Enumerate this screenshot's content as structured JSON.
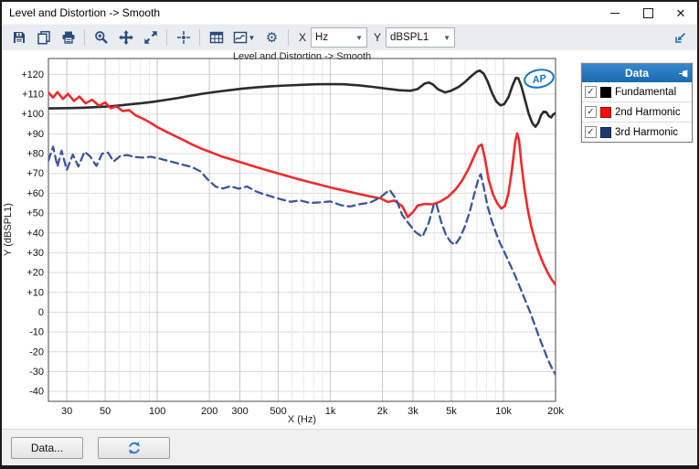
{
  "window": {
    "title": "Level and Distortion -> Smooth",
    "controls": [
      "minimize-icon",
      "maximize-icon",
      "close-icon"
    ]
  },
  "toolbar": {
    "icon_groups": [
      [
        "save",
        "copy",
        "print"
      ],
      [
        "zoom",
        "pan",
        "zoom-fit"
      ],
      [
        "cursor"
      ],
      [
        "table",
        "graph-type",
        "settings"
      ]
    ],
    "x_label": "X",
    "x_value": "Hz",
    "y_label": "Y",
    "y_value": "dBSPL1",
    "dock_icon": "dock-left-icon",
    "chevron_icon": "chevron-down-icon"
  },
  "chart": {
    "title": "Level and Distortion -> Smooth",
    "x_axis_title": "X (Hz)",
    "y_axis_title": "Y (dBSPL1)",
    "logo_text": "AP",
    "logo_color": "#1b75bc"
  },
  "legend": {
    "title": "Data",
    "pin_icon": "pin-icon",
    "series": [
      {
        "label": "Fundamental",
        "color": "#000000",
        "checked": true
      },
      {
        "label": "2nd Harmonic",
        "color": "#f50d0d",
        "checked": true
      },
      {
        "label": "3rd Harmonic",
        "color": "#1f3a72",
        "checked": true
      }
    ]
  },
  "footer": {
    "data_button": "Data...",
    "refresh_icon": "refresh-icon"
  },
  "chart_data": {
    "type": "line",
    "title": "Level and Distortion -> Smooth",
    "xlabel": "X (Hz)",
    "ylabel": "Y (dBSPL1)",
    "x_scale": "log",
    "x_range": [
      23.5,
      20000
    ],
    "y_range": [
      -45,
      128
    ],
    "grid": true,
    "legend_position": "right-panel",
    "x_ticks": {
      "labels": [
        "30",
        "50",
        "100",
        "200",
        "300",
        "500",
        "1k",
        "2k",
        "3k",
        "5k",
        "10k",
        "20k"
      ],
      "values": [
        30,
        50,
        100,
        200,
        300,
        500,
        1000,
        2000,
        3000,
        5000,
        10000,
        20000
      ]
    },
    "y_ticks": {
      "labels": [
        "+120",
        "+110",
        "+100",
        "+90",
        "+80",
        "+70",
        "+60",
        "+50",
        "+40",
        "+30",
        "+20",
        "+10",
        "0",
        "-10",
        "-20",
        "-30",
        "-40"
      ],
      "values": [
        120,
        110,
        100,
        90,
        80,
        70,
        60,
        50,
        40,
        30,
        20,
        10,
        0,
        -10,
        -20,
        -30,
        -40
      ]
    },
    "series": [
      {
        "name": "Fundamental",
        "color": "#2b2b2b",
        "width": 2.6,
        "dash": null,
        "points": [
          [
            23.5,
            102.8
          ],
          [
            27,
            102.9
          ],
          [
            32,
            103
          ],
          [
            38,
            103.2
          ],
          [
            45,
            103.5
          ],
          [
            52,
            103.8
          ],
          [
            60,
            104.3
          ],
          [
            70,
            104.9
          ],
          [
            82,
            105.5
          ],
          [
            95,
            106.2
          ],
          [
            110,
            107
          ],
          [
            130,
            108
          ],
          [
            155,
            109.2
          ],
          [
            185,
            110.3
          ],
          [
            220,
            111.2
          ],
          [
            260,
            112
          ],
          [
            310,
            112.8
          ],
          [
            380,
            113.5
          ],
          [
            460,
            114
          ],
          [
            560,
            114.4
          ],
          [
            680,
            114.7
          ],
          [
            820,
            115
          ],
          [
            1000,
            115.1
          ],
          [
            1200,
            115
          ],
          [
            1450,
            114.5
          ],
          [
            1750,
            113.7
          ],
          [
            2100,
            112.8
          ],
          [
            2500,
            112
          ],
          [
            2900,
            111.7
          ],
          [
            3200,
            112.6
          ],
          [
            3500,
            115.3
          ],
          [
            3700,
            115.9
          ],
          [
            3900,
            115
          ],
          [
            4200,
            112.4
          ],
          [
            4600,
            110.9
          ],
          [
            5000,
            111.8
          ],
          [
            5500,
            113.6
          ],
          [
            6000,
            116.2
          ],
          [
            6500,
            119
          ],
          [
            7000,
            121.3
          ],
          [
            7300,
            121.9
          ],
          [
            7700,
            120.3
          ],
          [
            8100,
            116.5
          ],
          [
            8600,
            110.5
          ],
          [
            9100,
            106.3
          ],
          [
            9600,
            104.4
          ],
          [
            10100,
            105
          ],
          [
            10700,
            108.5
          ],
          [
            11300,
            114.5
          ],
          [
            11800,
            118.2
          ],
          [
            12200,
            118
          ],
          [
            12700,
            114
          ],
          [
            13300,
            107.5
          ],
          [
            14000,
            100
          ],
          [
            14700,
            95.3
          ],
          [
            15300,
            93.6
          ],
          [
            15900,
            95.5
          ],
          [
            16500,
            99.5
          ],
          [
            17100,
            101.2
          ],
          [
            17700,
            100.9
          ],
          [
            18300,
            98.9
          ],
          [
            18900,
            98.3
          ],
          [
            19400,
            99.8
          ],
          [
            20000,
            100.4
          ]
        ]
      },
      {
        "name": "2nd Harmonic",
        "color": "#ee2b2b",
        "width": 2.6,
        "dash": null,
        "points": [
          [
            23.5,
            110.8
          ],
          [
            25,
            108.3
          ],
          [
            26.5,
            111
          ],
          [
            28.5,
            107.6
          ],
          [
            30.5,
            110.2
          ],
          [
            33,
            106.6
          ],
          [
            35.5,
            108.8
          ],
          [
            38.5,
            105.4
          ],
          [
            42,
            107.2
          ],
          [
            46,
            104.2
          ],
          [
            50,
            105.8
          ],
          [
            54,
            102.9
          ],
          [
            58,
            103.9
          ],
          [
            63,
            101.5
          ],
          [
            69,
            101.9
          ],
          [
            75,
            99.3
          ],
          [
            82,
            97.8
          ],
          [
            90,
            95.9
          ],
          [
            100,
            93.4
          ],
          [
            112,
            91.2
          ],
          [
            126,
            89
          ],
          [
            142,
            86.8
          ],
          [
            160,
            84.5
          ],
          [
            180,
            82.5
          ],
          [
            205,
            80.6
          ],
          [
            235,
            78.6
          ],
          [
            270,
            77
          ],
          [
            310,
            75.4
          ],
          [
            360,
            73.6
          ],
          [
            420,
            71.9
          ],
          [
            490,
            70.2
          ],
          [
            570,
            68.6
          ],
          [
            660,
            67
          ],
          [
            770,
            65.5
          ],
          [
            900,
            64
          ],
          [
            1050,
            62.5
          ],
          [
            1250,
            61
          ],
          [
            1450,
            59.7
          ],
          [
            1700,
            58.4
          ],
          [
            1950,
            57.4
          ],
          [
            2150,
            55.6
          ],
          [
            2350,
            56.3
          ],
          [
            2600,
            53.5
          ],
          [
            2800,
            48
          ],
          [
            3000,
            50.5
          ],
          [
            3200,
            53.8
          ],
          [
            3500,
            54.6
          ],
          [
            3900,
            54.4
          ],
          [
            4300,
            55.7
          ],
          [
            4800,
            58.3
          ],
          [
            5300,
            62
          ],
          [
            5800,
            66.8
          ],
          [
            6300,
            72.5
          ],
          [
            6800,
            79
          ],
          [
            7200,
            83.7
          ],
          [
            7500,
            84.6
          ],
          [
            7800,
            78
          ],
          [
            8200,
            67
          ],
          [
            8700,
            59.5
          ],
          [
            9200,
            55
          ],
          [
            9700,
            52.3
          ],
          [
            10200,
            53.5
          ],
          [
            10700,
            60
          ],
          [
            11200,
            72
          ],
          [
            11700,
            86
          ],
          [
            12000,
            90.2
          ],
          [
            12300,
            87
          ],
          [
            12700,
            75
          ],
          [
            13200,
            63
          ],
          [
            13800,
            52
          ],
          [
            14500,
            43
          ],
          [
            15300,
            35.5
          ],
          [
            16100,
            29.5
          ],
          [
            17000,
            24.5
          ],
          [
            18000,
            20
          ],
          [
            19000,
            16.5
          ],
          [
            20000,
            13.8
          ]
        ]
      },
      {
        "name": "3rd Harmonic",
        "color": "#3a569c",
        "width": 2.3,
        "dash": "8 5",
        "points": [
          [
            23.5,
            76.5
          ],
          [
            25,
            83.5
          ],
          [
            26.5,
            73.5
          ],
          [
            28,
            81.5
          ],
          [
            30,
            71.8
          ],
          [
            32.5,
            79.5
          ],
          [
            35,
            73.5
          ],
          [
            38,
            81
          ],
          [
            41,
            78.5
          ],
          [
            44.5,
            73.8
          ],
          [
            48,
            80
          ],
          [
            52,
            80.5
          ],
          [
            56,
            76
          ],
          [
            61,
            78.8
          ],
          [
            67,
            79.3
          ],
          [
            74,
            78.3
          ],
          [
            82,
            78
          ],
          [
            92,
            78.4
          ],
          [
            105,
            77.3
          ],
          [
            120,
            76
          ],
          [
            138,
            74.6
          ],
          [
            158,
            73.3
          ],
          [
            178,
            71
          ],
          [
            198,
            66.5
          ],
          [
            218,
            63.3
          ],
          [
            240,
            62.4
          ],
          [
            265,
            63.6
          ],
          [
            295,
            62.3
          ],
          [
            330,
            63.4
          ],
          [
            370,
            61
          ],
          [
            410,
            59.6
          ],
          [
            460,
            58.3
          ],
          [
            520,
            56.9
          ],
          [
            590,
            55.7
          ],
          [
            670,
            56.4
          ],
          [
            760,
            55.1
          ],
          [
            870,
            55.4
          ],
          [
            1000,
            55.9
          ],
          [
            1150,
            54
          ],
          [
            1300,
            53.3
          ],
          [
            1500,
            54.6
          ],
          [
            1700,
            55.3
          ],
          [
            1950,
            58
          ],
          [
            2200,
            61.7
          ],
          [
            2400,
            57
          ],
          [
            2600,
            49
          ],
          [
            2850,
            44.5
          ],
          [
            3100,
            40.5
          ],
          [
            3400,
            38
          ],
          [
            3700,
            45
          ],
          [
            3950,
            54
          ],
          [
            4100,
            54.8
          ],
          [
            4350,
            46
          ],
          [
            4650,
            39
          ],
          [
            4950,
            35.5
          ],
          [
            5250,
            34
          ],
          [
            5600,
            37.5
          ],
          [
            6000,
            43.5
          ],
          [
            6400,
            51
          ],
          [
            6800,
            60
          ],
          [
            7200,
            68
          ],
          [
            7400,
            69.6
          ],
          [
            7700,
            63
          ],
          [
            8100,
            53.5
          ],
          [
            8600,
            45.5
          ],
          [
            9100,
            39.5
          ],
          [
            9600,
            34.5
          ],
          [
            10100,
            30.5
          ],
          [
            10800,
            25
          ],
          [
            11600,
            19
          ],
          [
            12400,
            13
          ],
          [
            13300,
            6.5
          ],
          [
            14200,
            0.5
          ],
          [
            15100,
            -6
          ],
          [
            16000,
            -12
          ],
          [
            17000,
            -18
          ],
          [
            18000,
            -23.5
          ],
          [
            19000,
            -28
          ],
          [
            20000,
            -31.5
          ]
        ]
      }
    ]
  }
}
